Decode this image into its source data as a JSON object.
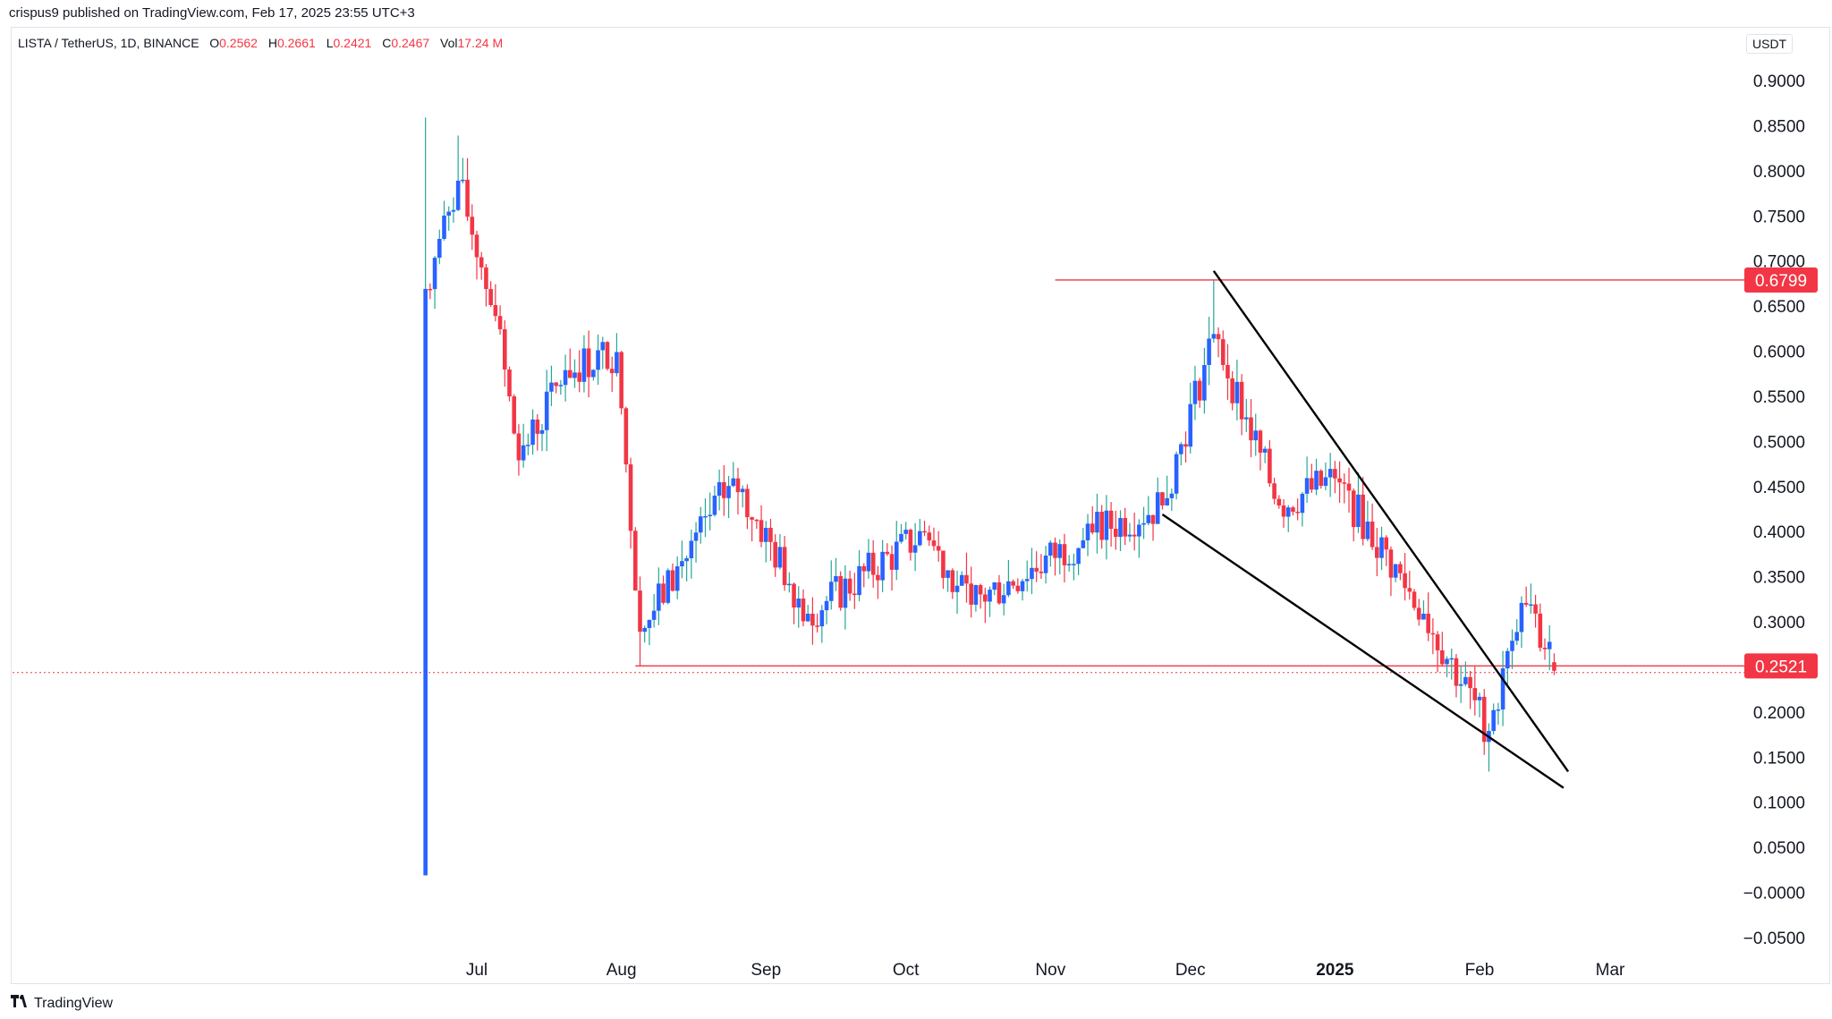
{
  "header": {
    "attribution": "crispus9 published on TradingView.com, Feb 17, 2025 23:55 UTC+3"
  },
  "legend": {
    "symbol": "LISTA / TetherUS, 1D, BINANCE",
    "open_label": "O",
    "open_value": "0.2562",
    "high_label": "H",
    "high_value": "0.2661",
    "low_label": "L",
    "low_value": "0.2421",
    "close_label": "C",
    "close_value": "0.2467",
    "vol_label": "Vol",
    "vol_value": "17.24 M"
  },
  "currency": "USDT",
  "footer": {
    "brand": "TradingView",
    "logo_icon": "tradingview-logo-icon"
  },
  "colors": {
    "up": "#2962ff",
    "down": "#f23645",
    "wick_up": "#26a69a",
    "wick_down": "#f23645",
    "level_line": "#f23645",
    "trend_line": "#000000",
    "grid": "#ffffff",
    "axis_text": "#131722"
  },
  "chart_data": {
    "type": "candlestick",
    "title": "LISTA / TetherUS, 1D, BINANCE",
    "y_axis": {
      "ylim": [
        -0.08,
        0.93
      ],
      "ticks": [
        "0.9000",
        "0.8500",
        "0.8000",
        "0.7500",
        "0.7000",
        "0.6500",
        "0.6000",
        "0.5500",
        "0.5000",
        "0.4500",
        "0.4000",
        "0.3500",
        "0.3000",
        "0.2500",
        "0.2000",
        "0.1500",
        "0.1000",
        "0.0500",
        "−0.0000",
        "−0.0500"
      ],
      "tick_values": [
        0.9,
        0.85,
        0.8,
        0.75,
        0.7,
        0.65,
        0.6,
        0.55,
        0.5,
        0.45,
        0.4,
        0.35,
        0.3,
        0.25,
        0.2,
        0.15,
        0.1,
        0.05,
        0,
        -0.05
      ]
    },
    "x_axis": {
      "labels": [
        "Jul",
        "Aug",
        "Sep",
        "Oct",
        "Nov",
        "Dec",
        "2025",
        "Feb",
        "Mar"
      ],
      "label_dates": [
        "2024-07-01",
        "2024-08-01",
        "2024-09-01",
        "2024-10-01",
        "2024-11-01",
        "2024-12-01",
        "2025-01-01",
        "2025-02-01",
        "2025-03-01"
      ],
      "range": [
        "2024-06-03",
        "2025-03-31"
      ]
    },
    "price_labels": [
      {
        "value": 0.6799,
        "text": "0.6799"
      },
      {
        "value": 0.2521,
        "text": "0.2521"
      }
    ],
    "horizontal_lines": [
      {
        "value": 0.6799,
        "from": "2024-11-02"
      },
      {
        "value": 0.2521,
        "from": "2024-08-04"
      }
    ],
    "current_price_line": 0.2467,
    "trend_lines": [
      {
        "name": "upper-wedge-line",
        "start": [
          "2024-12-06",
          0.69
        ],
        "end": [
          "2025-02-20",
          0.135
        ]
      },
      {
        "name": "lower-wedge-line",
        "start": [
          "2024-11-25",
          0.42
        ],
        "end": [
          "2025-02-19",
          0.117
        ]
      }
    ],
    "key_points": [
      {
        "date": "2024-06-20",
        "open": 0.02,
        "high": 0.86,
        "low": 0.02,
        "close": 0.67
      },
      {
        "date": "2024-06-27",
        "close": 0.79,
        "high": 0.84
      },
      {
        "date": "2024-07-05",
        "close": 0.64
      },
      {
        "date": "2024-07-10",
        "close": 0.48
      },
      {
        "date": "2024-07-20",
        "close": 0.58
      },
      {
        "date": "2024-07-31",
        "close": 0.6
      },
      {
        "date": "2024-08-05",
        "low": 0.252,
        "close": 0.29
      },
      {
        "date": "2024-08-25",
        "close": 0.46
      },
      {
        "date": "2024-09-10",
        "close": 0.31
      },
      {
        "date": "2024-10-05",
        "close": 0.4
      },
      {
        "date": "2024-10-15",
        "close": 0.32
      },
      {
        "date": "2024-11-10",
        "close": 0.4
      },
      {
        "date": "2024-11-25",
        "close": 0.43
      },
      {
        "date": "2024-12-06",
        "high": 0.68,
        "close": 0.62
      },
      {
        "date": "2024-12-20",
        "close": 0.43
      },
      {
        "date": "2025-01-01",
        "close": 0.46
      },
      {
        "date": "2025-01-20",
        "close": 0.31
      },
      {
        "date": "2025-02-03",
        "low": 0.135,
        "close": 0.18
      },
      {
        "date": "2025-02-08",
        "close": 0.28
      },
      {
        "date": "2025-02-11",
        "high": 0.34,
        "close": 0.32
      },
      {
        "date": "2025-02-17",
        "open": 0.2562,
        "high": 0.2661,
        "low": 0.2421,
        "close": 0.2467
      }
    ]
  }
}
